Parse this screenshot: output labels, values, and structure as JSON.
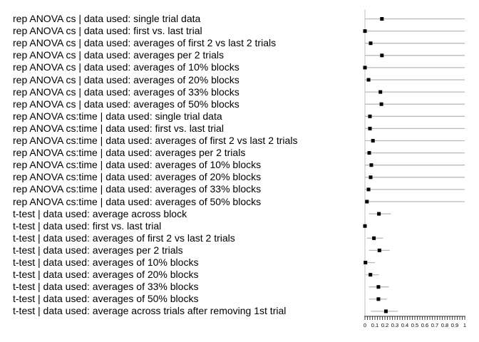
{
  "figure": {
    "background_color": "#ffffff",
    "marker_color": "#000000",
    "bar_color": "#b9b9b9",
    "axis_line_color": "#d2d2d2",
    "tick_color": "#2a2a2a",
    "tick_label_color": "#000000",
    "label_text_color": "#000000"
  },
  "chart_data": {
    "type": "scatter",
    "variant": "horizontal dot plot with error bars (forest plot)",
    "title": "",
    "xlabel": "",
    "ylabel": "",
    "xlim": [
      0,
      1
    ],
    "grid": false,
    "legend": false,
    "x_tick_labels": [
      "0",
      "0.1",
      "0.2",
      "0.3",
      "0.4",
      "0.5",
      "0.6",
      "0.7",
      "0.8",
      "0.9",
      "1"
    ],
    "x_tick_values": [
      0,
      0.1,
      0.2,
      0.3,
      0.4,
      0.5,
      0.6,
      0.7,
      0.8,
      0.9,
      1
    ],
    "minor_tick_step": 0.025,
    "rows": [
      {
        "label": "rep ANOVA cs | data used: single trial data",
        "value": 0.17,
        "lo": 0.0,
        "hi": 1.0
      },
      {
        "label": "rep ANOVA cs | data used: first vs. last trial",
        "value": 0.0,
        "lo": 0.0,
        "hi": 1.0
      },
      {
        "label": "rep ANOVA cs | data used: averages of first 2 vs last 2 trials",
        "value": 0.057,
        "lo": 0.0,
        "hi": 1.0
      },
      {
        "label": "rep ANOVA cs | data used: averages per 2 trials",
        "value": 0.17,
        "lo": 0.0,
        "hi": 1.0
      },
      {
        "label": "rep ANOVA cs | data used: averages of 10% blocks",
        "value": 0.0,
        "lo": 0.0,
        "hi": 1.0
      },
      {
        "label": "rep ANOVA cs | data used: averages of 20% blocks",
        "value": 0.036,
        "lo": 0.0,
        "hi": 1.0
      },
      {
        "label": "rep ANOVA cs | data used: averages of 33% blocks",
        "value": 0.155,
        "lo": 0.0,
        "hi": 1.0
      },
      {
        "label": "rep ANOVA cs | data used: averages of 50% blocks",
        "value": 0.165,
        "lo": 0.0,
        "hi": 1.0
      },
      {
        "label": "rep ANOVA cs:time | data used: single trial data",
        "value": 0.05,
        "lo": 0.0,
        "hi": 1.0
      },
      {
        "label": "rep ANOVA cs:time | data used: first vs. last trial",
        "value": 0.05,
        "lo": 0.0,
        "hi": 1.0
      },
      {
        "label": "rep ANOVA cs:time | data used: averages of first 2 vs last 2 trials",
        "value": 0.08,
        "lo": 0.0,
        "hi": 1.0
      },
      {
        "label": "rep ANOVA cs:time | data used: averages per 2 trials",
        "value": 0.043,
        "lo": 0.0,
        "hi": 1.0
      },
      {
        "label": "rep ANOVA cs:time | data used: averages of 10% blocks",
        "value": 0.064,
        "lo": 0.0,
        "hi": 1.0
      },
      {
        "label": "rep ANOVA cs:time | data used: averages of 20% blocks",
        "value": 0.057,
        "lo": 0.0,
        "hi": 1.0
      },
      {
        "label": "rep ANOVA cs:time | data used: averages of 33% blocks",
        "value": 0.036,
        "lo": 0.0,
        "hi": 1.0
      },
      {
        "label": "rep ANOVA cs:time | data used: averages of 50% blocks",
        "value": 0.02,
        "lo": 0.0,
        "hi": 1.0
      },
      {
        "label": "t-test | data used: average across block",
        "value": 0.14,
        "lo": 0.04,
        "hi": 0.26
      },
      {
        "label": "t-test | data used: first vs. last trial",
        "value": 0.0,
        "lo": 0.0,
        "hi": 0.01
      },
      {
        "label": "t-test | data used: averages of first 2 vs last 2 trials",
        "value": 0.09,
        "lo": 0.02,
        "hi": 0.18
      },
      {
        "label": "t-test | data used: averages per 2 trials",
        "value": 0.145,
        "lo": 0.04,
        "hi": 0.25
      },
      {
        "label": "t-test | data used: averages of 10% blocks",
        "value": 0.005,
        "lo": 0.0,
        "hi": 0.1
      },
      {
        "label": "t-test | data used: averages of 20% blocks",
        "value": 0.055,
        "lo": 0.01,
        "hi": 0.14
      },
      {
        "label": "t-test | data used: averages of 33% blocks",
        "value": 0.135,
        "lo": 0.04,
        "hi": 0.24
      },
      {
        "label": "t-test | data used: averages of 50% blocks",
        "value": 0.135,
        "lo": 0.04,
        "hi": 0.22
      },
      {
        "label": "t-test | data used: average across trials after removing 1st trial",
        "value": 0.21,
        "lo": 0.06,
        "hi": 0.33
      }
    ]
  }
}
